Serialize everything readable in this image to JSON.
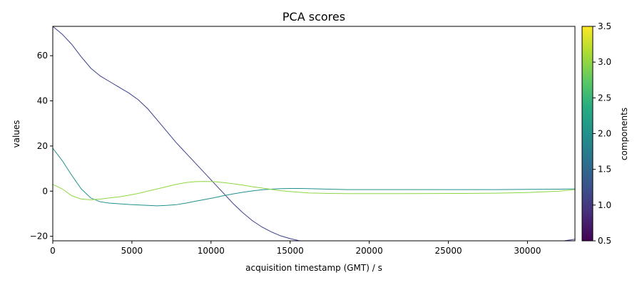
{
  "chart_data": {
    "type": "line",
    "title": "PCA scores",
    "xlabel": "acquisition timestamp (GMT) / s",
    "ylabel": "values",
    "xlim": [
      0,
      33000
    ],
    "ylim": [
      -22,
      73
    ],
    "xticks": [
      0,
      5000,
      10000,
      15000,
      20000,
      25000,
      30000
    ],
    "yticks": [
      -20,
      0,
      20,
      40,
      60
    ],
    "grid": false,
    "colorbar": {
      "label": "components",
      "range": [
        0.5,
        3.5
      ],
      "ticks": [
        "0.5",
        "1.0",
        "1.5",
        "2.0",
        "2.5",
        "3.0",
        "3.5"
      ],
      "colormap": "viridis"
    },
    "series": [
      {
        "component": 1,
        "color": "#440154",
        "stroke": "#3b3f8c",
        "x": [
          0,
          600,
          1200,
          1800,
          2400,
          3000,
          3600,
          4200,
          4800,
          5400,
          6000,
          6600,
          7200,
          7800,
          8400,
          9000,
          9600,
          10200,
          10800,
          11400,
          12000,
          12600,
          13200,
          13800,
          14400,
          15000,
          15600,
          16200,
          16800,
          17400,
          18000,
          18600,
          19200,
          20000,
          22000,
          24000,
          26000,
          28000,
          30000,
          32000,
          32500,
          33000
        ],
        "y": [
          73,
          69.5,
          65,
          59.5,
          54.5,
          51,
          48.5,
          46,
          43.5,
          40.5,
          36.5,
          31.5,
          26.5,
          21.5,
          17,
          12.5,
          8,
          3.5,
          -1,
          -5.5,
          -9.5,
          -13,
          -15.8,
          -18,
          -19.8,
          -21,
          -22,
          -22.7,
          -23.3,
          -23.7,
          -24,
          -24.2,
          -24.3,
          -24.3,
          -24.2,
          -24,
          -23.8,
          -23.5,
          -23,
          -22.3,
          -21.8,
          -21.3
        ]
      },
      {
        "component": 2,
        "color": "#21918c",
        "stroke": "#21918c",
        "x": [
          0,
          600,
          1200,
          1800,
          2400,
          3000,
          3600,
          4200,
          4800,
          5400,
          6000,
          6600,
          7200,
          7800,
          8400,
          9000,
          9600,
          10200,
          10800,
          11400,
          12000,
          12600,
          13200,
          13800,
          14400,
          15000,
          15600,
          16200,
          16800,
          17400,
          18000,
          18600,
          19200,
          20000,
          22000,
          24000,
          26000,
          28000,
          30000,
          32000,
          33000
        ],
        "y": [
          19,
          13.5,
          7,
          1,
          -3,
          -4.7,
          -5.3,
          -5.6,
          -5.9,
          -6.1,
          -6.3,
          -6.5,
          -6.3,
          -6,
          -5.3,
          -4.5,
          -3.7,
          -2.9,
          -2,
          -1.2,
          -0.5,
          0.1,
          0.6,
          0.9,
          1.1,
          1.2,
          1.2,
          1.1,
          1,
          0.9,
          0.8,
          0.7,
          0.7,
          0.7,
          0.7,
          0.7,
          0.7,
          0.7,
          0.8,
          0.9,
          1.0
        ]
      },
      {
        "component": 3,
        "color": "#b5de2b",
        "stroke": "#8fd744",
        "x": [
          0,
          600,
          1200,
          1800,
          2400,
          3000,
          3600,
          4200,
          4800,
          5400,
          6000,
          6600,
          7200,
          7800,
          8400,
          9000,
          9600,
          10200,
          10800,
          11400,
          12000,
          12600,
          13200,
          13800,
          14400,
          15000,
          15600,
          16200,
          16800,
          17400,
          18000,
          18600,
          19200,
          20000,
          22000,
          24000,
          26000,
          28000,
          30000,
          32000,
          33000
        ],
        "y": [
          3,
          1,
          -2,
          -3.5,
          -3.8,
          -3.5,
          -3,
          -2.5,
          -1.8,
          -1,
          0,
          1,
          2,
          3,
          3.8,
          4.2,
          4.3,
          4.2,
          3.8,
          3.3,
          2.7,
          2,
          1.4,
          0.8,
          0.2,
          -0.2,
          -0.5,
          -0.8,
          -0.9,
          -1,
          -1.05,
          -1.1,
          -1.1,
          -1.1,
          -1.1,
          -1.05,
          -1.0,
          -0.9,
          -0.6,
          0.0,
          0.7
        ]
      }
    ]
  }
}
